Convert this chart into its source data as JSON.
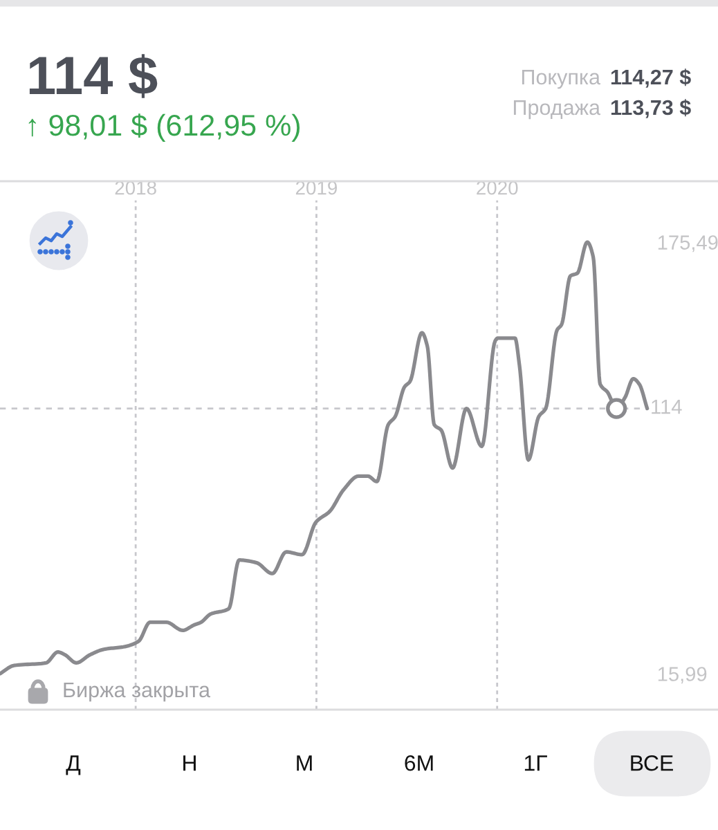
{
  "chart_data": {
    "type": "line",
    "title": "114 $",
    "subtitle": "↑ 98,01 $ (612,95 %)",
    "x": [
      "2017-04-02",
      "2017-04-30",
      "2017-07-04",
      "2017-07-28",
      "2017-08-11",
      "2017-09-03",
      "2017-10-01",
      "2017-10-29",
      "2017-12-10",
      "2018-01-07",
      "2018-01-30",
      "2018-03-04",
      "2018-04-06",
      "2018-04-29",
      "2018-05-13",
      "2018-06-01",
      "2018-07-08",
      "2018-07-29",
      "2018-09-02",
      "2018-10-04",
      "2018-11-01",
      "2018-12-03",
      "2018-12-31",
      "2019-01-28",
      "2019-02-25",
      "2019-03-27",
      "2019-04-15",
      "2019-05-03",
      "2019-05-26",
      "2019-06-09",
      "2019-06-28",
      "2019-07-09",
      "2019-08-02",
      "2019-08-13",
      "2019-08-27",
      "2019-09-10",
      "2019-10-03",
      "2019-10-31",
      "2019-12-01",
      "2019-12-28",
      "2020-01-02",
      "2020-02-06",
      "2020-02-15",
      "2020-03-04",
      "2020-03-25",
      "2020-04-08",
      "2020-05-01",
      "2020-05-10",
      "2020-05-28",
      "2020-06-11",
      "2020-07-01",
      "2020-07-13",
      "2020-07-27",
      "2020-08-11",
      "2020-08-29",
      "2020-09-15",
      "2020-10-02",
      "2020-10-14",
      "2020-10-30"
    ],
    "series": [
      {
        "color": "#8a8a8e",
        "values": [
          15.99,
          19,
          20,
          24,
          23,
          20,
          23,
          25,
          26,
          28,
          35,
          35,
          32,
          34,
          35,
          38,
          40,
          58,
          57,
          53,
          61,
          60,
          72,
          76,
          84,
          89,
          89,
          87,
          108,
          111,
          122,
          124,
          142,
          137,
          108,
          106,
          92,
          114,
          100,
          139,
          140,
          140,
          130,
          95,
          111,
          114,
          143,
          145,
          163,
          164,
          175.49,
          170,
          123,
          120,
          114,
          118,
          125,
          123,
          114
        ]
      },
      {
        "type": "scatter",
        "x": [
          "2020-08-29"
        ],
        "values": [
          114
        ],
        "color": "#8a8a8e",
        "marker": "circle"
      }
    ],
    "xlim": [
      "2017-04-02",
      "2021-03-22"
    ],
    "xticks": [
      "2018",
      "2019",
      "2020"
    ],
    "ylim": [
      2.7,
      198
    ],
    "yticks": [
      {
        "value": 15.99,
        "label": "15,99"
      },
      {
        "value": 175.49,
        "label": "175,49"
      }
    ],
    "ref_lines": [
      {
        "axis": "y",
        "value": 114,
        "label": "114",
        "color": "#c7c7cc",
        "line_style": "dashed"
      }
    ],
    "grid": "x",
    "annotations": [
      "Покупка",
      "114,27 $",
      "Продажа",
      "113,73 $",
      "Биржа закрыта",
      "Д",
      "Н",
      "М",
      "6М",
      "1Г",
      "ВСЕ"
    ]
  }
}
